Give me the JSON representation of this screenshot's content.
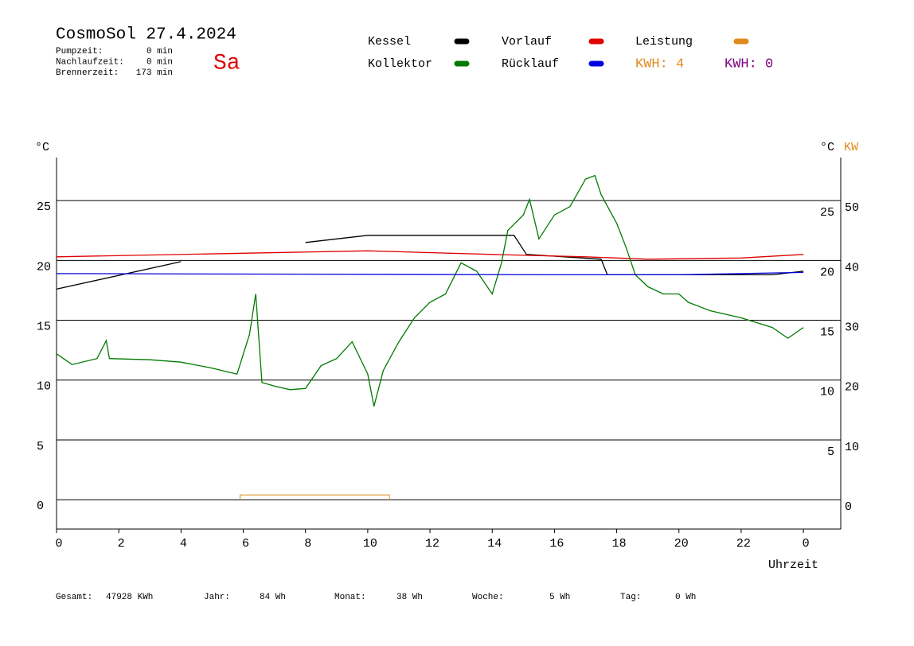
{
  "chart_data": {
    "type": "line",
    "title": "CosmoSol 27.4.2024",
    "day": "Sa",
    "info": [
      {
        "label": "Pumpzeit:",
        "value": "0 min"
      },
      {
        "label": "Nachlaufzeit:",
        "value": "0 min"
      },
      {
        "label": "Brennerzeit:",
        "value": "173 min"
      }
    ],
    "kwh_labels": [
      {
        "text": "KWH: 4",
        "color": "#e08a1e"
      },
      {
        "text": "KWH: 0",
        "color": "#800080"
      }
    ],
    "y_label": "°C",
    "y2_label_celsius": "°C",
    "y2_label": "KW",
    "x_label": "Uhrzeit",
    "xlim": [
      0,
      25.2
    ],
    "xticks": [
      0,
      2,
      4,
      6,
      8,
      10,
      12,
      14,
      16,
      18,
      20,
      22,
      {
        "value": 24,
        "label": "0"
      }
    ],
    "ylim": [
      -2.45,
      28.6
    ],
    "yticks": [
      0,
      5,
      10,
      15,
      20,
      25
    ],
    "right_celsius_ticks": [
      5,
      10,
      15,
      20,
      25
    ],
    "y2lim": [
      -4.9,
      57.2
    ],
    "y2ticks": [
      0,
      10,
      20,
      30,
      40,
      50
    ],
    "y2color": "#e08a1e",
    "grid": true,
    "series": [
      {
        "name": "Kessel",
        "color": "#000000",
        "x": [
          0,
          4,
          5.9,
          8,
          10,
          14.7,
          15.1,
          17.5,
          17.7,
          23,
          24
        ],
        "values": [
          17.6,
          19.9,
          null,
          21.5,
          22.1,
          22.1,
          20.5,
          20.1,
          18.8,
          18.8,
          19.1
        ]
      },
      {
        "name": "Vorlauf",
        "color": "#e00000",
        "x": [
          0,
          6,
          10,
          14,
          17,
          19,
          22,
          24
        ],
        "values": [
          20.3,
          20.6,
          20.8,
          20.5,
          20.3,
          20.1,
          20.2,
          20.5
        ]
      },
      {
        "name": "Leistung",
        "color": "#e08a1e",
        "axis": "y2",
        "x": [
          5.9,
          5.9,
          10.7,
          10.7
        ],
        "values": [
          0,
          0.8,
          0.8,
          0
        ]
      },
      {
        "name": "Kollektor",
        "color": "#007a00",
        "x": [
          0,
          0.5,
          1.3,
          1.6,
          1.7,
          3,
          4,
          5,
          5.8,
          6.2,
          6.4,
          6.6,
          7,
          7.5,
          8,
          8.5,
          9,
          9.5,
          10,
          10.2,
          10.5,
          11,
          11.5,
          12,
          12.5,
          13,
          13.5,
          14,
          14.3,
          14.5,
          15,
          15.2,
          15.5,
          16,
          16.5,
          17,
          17.3,
          17.5,
          18,
          18.3,
          18.6,
          19,
          19.5,
          20,
          20.3,
          21,
          22,
          23,
          23.5,
          24
        ],
        "values": [
          12.2,
          11.3,
          11.8,
          13.3,
          11.8,
          11.7,
          11.5,
          11.0,
          10.5,
          13.8,
          17.2,
          9.8,
          9.5,
          9.2,
          9.3,
          11.2,
          11.8,
          13.2,
          10.5,
          7.8,
          10.8,
          13.2,
          15.2,
          16.5,
          17.2,
          19.8,
          19.1,
          17.2,
          19.8,
          22.5,
          23.8,
          25.1,
          21.8,
          23.8,
          24.5,
          26.8,
          27.1,
          25.5,
          23.1,
          21.1,
          18.8,
          17.8,
          17.2,
          17.2,
          16.5,
          15.8,
          15.2,
          14.4,
          13.5,
          14.4
        ]
      },
      {
        "name": "Rücklauf",
        "color": "#0000e0",
        "x": [
          0,
          16,
          20,
          24
        ],
        "values": [
          18.9,
          18.8,
          18.8,
          19.0
        ]
      }
    ],
    "footer": [
      {
        "label": "Gesamt:",
        "value": "47928 KWh"
      },
      {
        "label": "Jahr:",
        "value": "84 Wh"
      },
      {
        "label": "Monat:",
        "value": "38 Wh"
      },
      {
        "label": "Woche:",
        "value": "5 Wh"
      },
      {
        "label": "Tag:",
        "value": "0 Wh"
      }
    ]
  }
}
